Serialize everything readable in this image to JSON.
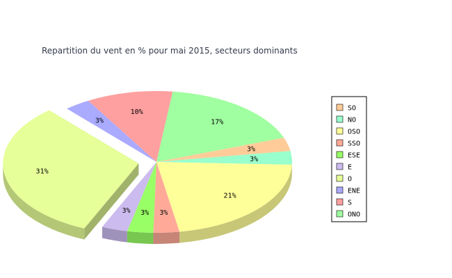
{
  "chart_data": {
    "type": "pie",
    "title": "Repartition du vent en % pour mai 2015, secteurs dominants",
    "slices": [
      {
        "label": "SO",
        "value": 3,
        "display": "3%",
        "color": "#ffcc99"
      },
      {
        "label": "NO",
        "value": 3,
        "display": "3%",
        "color": "#99ffcc"
      },
      {
        "label": "OSO",
        "value": 21,
        "display": "21%",
        "color": "#ffff99"
      },
      {
        "label": "SSO",
        "value": 3,
        "display": "3%",
        "color": "#ffaa99"
      },
      {
        "label": "ESE",
        "value": 3,
        "display": "3%",
        "color": "#99ff66"
      },
      {
        "label": "E",
        "value": 3,
        "display": "3%",
        "color": "#ccbbee"
      },
      {
        "label": "O",
        "value": 31,
        "display": "31%",
        "color": "#e6ff99"
      },
      {
        "label": "ENE",
        "value": 3,
        "display": "3%",
        "color": "#aaaaff"
      },
      {
        "label": "S",
        "value": 10,
        "display": "10%",
        "color": "#ffa0a0"
      },
      {
        "label": "ONO",
        "value": 17,
        "display": "17%",
        "color": "#a0ffa0"
      }
    ],
    "exploded": "O",
    "legend_position": "right"
  }
}
